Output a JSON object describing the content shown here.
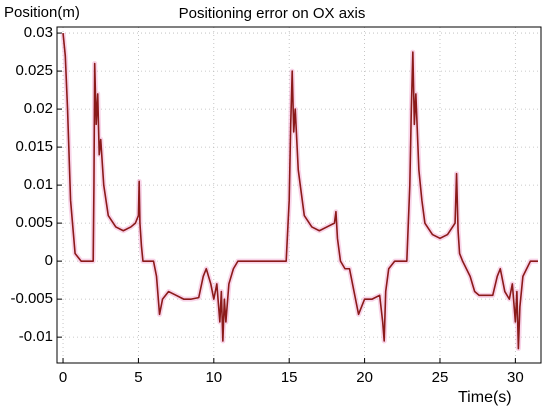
{
  "chart_data": {
    "type": "line",
    "title": "Positioning error on OX axis",
    "ylabel": "Position(m)",
    "xlabel": "Time(s)",
    "color": "#8b1a1a",
    "grid": true,
    "xlim": [
      -0.4,
      31.7
    ],
    "ylim": [
      -0.0134,
      0.0308
    ],
    "xticks": [
      0,
      5,
      10,
      15,
      20,
      25,
      30
    ],
    "yticks": [
      -0.01,
      -0.005,
      0,
      0.005,
      0.01,
      0.015,
      0.02,
      0.025,
      0.03
    ],
    "x": [
      0,
      0.05,
      0.15,
      0.3,
      0.5,
      0.8,
      1.2,
      2.0,
      2.05,
      2.1,
      2.2,
      2.3,
      2.4,
      2.5,
      2.7,
      3.0,
      3.5,
      4.0,
      4.5,
      4.8,
      5.0,
      5.05,
      5.1,
      5.2,
      5.3,
      6.0,
      6.2,
      6.4,
      6.6,
      7.0,
      7.5,
      8.0,
      8.5,
      9.0,
      9.3,
      9.5,
      9.8,
      10.0,
      10.2,
      10.4,
      10.5,
      10.6,
      10.7,
      10.8,
      11.0,
      11.3,
      11.6,
      12.0,
      14.8,
      15.0,
      15.1,
      15.2,
      15.3,
      15.4,
      15.6,
      15.8,
      16.0,
      16.5,
      17.0,
      17.5,
      18.0,
      18.1,
      18.2,
      18.4,
      18.7,
      19.0,
      19.3,
      19.6,
      20.0,
      20.5,
      21.0,
      21.2,
      21.3,
      21.4,
      21.6,
      22.0,
      22.8,
      23.0,
      23.1,
      23.2,
      23.3,
      23.4,
      23.6,
      23.8,
      24.0,
      24.5,
      25.0,
      25.5,
      26.0,
      26.1,
      26.2,
      26.3,
      26.5,
      27.0,
      27.3,
      27.6,
      28.0,
      28.5,
      28.8,
      29.0,
      29.3,
      29.6,
      29.8,
      30.0,
      30.1,
      30.2,
      30.3,
      30.5,
      31.0,
      31.5
    ],
    "values": [
      0.03,
      0.029,
      0.027,
      0.02,
      0.008,
      0.001,
      0,
      0,
      0.01,
      0.026,
      0.018,
      0.022,
      0.014,
      0.016,
      0.01,
      0.006,
      0.0045,
      0.004,
      0.0045,
      0.005,
      0.006,
      0.0105,
      0.005,
      0.002,
      0,
      0,
      -0.002,
      -0.007,
      -0.005,
      -0.004,
      -0.0045,
      -0.005,
      -0.005,
      -0.0048,
      -0.002,
      -0.001,
      -0.003,
      -0.005,
      -0.003,
      -0.008,
      -0.004,
      -0.0105,
      -0.005,
      -0.008,
      -0.003,
      -0.001,
      0,
      0,
      0,
      0.008,
      0.018,
      0.025,
      0.017,
      0.02,
      0.012,
      0.009,
      0.006,
      0.0045,
      0.004,
      0.0045,
      0.005,
      0.0065,
      0.003,
      0,
      -0.001,
      -0.001,
      -0.004,
      -0.007,
      -0.005,
      -0.005,
      -0.0045,
      -0.008,
      -0.0105,
      -0.004,
      -0.001,
      0,
      0,
      0.01,
      0.02,
      0.0275,
      0.018,
      0.022,
      0.012,
      0.008,
      0.005,
      0.0035,
      0.003,
      0.0035,
      0.005,
      0.0115,
      0.004,
      0.001,
      0,
      -0.002,
      -0.004,
      -0.0045,
      -0.0045,
      -0.0045,
      -0.002,
      -0.001,
      -0.004,
      -0.005,
      -0.003,
      -0.008,
      -0.004,
      -0.0115,
      -0.006,
      -0.002,
      0,
      0
    ]
  }
}
